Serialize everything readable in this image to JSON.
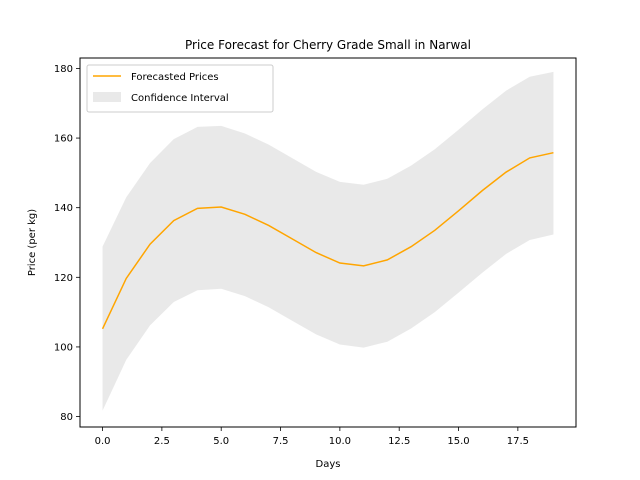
{
  "chart_data": {
    "type": "line",
    "title": "Price Forecast for Cherry Grade Small in Narwal",
    "xlabel": "Days",
    "ylabel": "Price (per kg)",
    "xlim": [
      -0.95,
      19.95
    ],
    "ylim": [
      77.0,
      183.0
    ],
    "x_ticks": [
      0.0,
      2.5,
      5.0,
      7.5,
      10.0,
      12.5,
      15.0,
      17.5
    ],
    "x_tick_labels": [
      "0.0",
      "2.5",
      "5.0",
      "7.5",
      "10.0",
      "12.5",
      "15.0",
      "17.5"
    ],
    "y_ticks": [
      80,
      100,
      120,
      140,
      160,
      180
    ],
    "y_tick_labels": [
      "80",
      "100",
      "120",
      "140",
      "160",
      "180"
    ],
    "grid": false,
    "legend": {
      "position": "top-left",
      "entries": [
        {
          "label": "Forecasted Prices",
          "kind": "line",
          "color": "#ffa500"
        },
        {
          "label": "Confidence Interval",
          "kind": "area",
          "color": "#d3d3d3"
        }
      ]
    },
    "x": [
      0,
      1,
      2,
      3,
      4,
      5,
      6,
      7,
      8,
      9,
      10,
      11,
      12,
      13,
      14,
      15,
      16,
      17,
      18,
      19
    ],
    "series": [
      {
        "name": "Forecasted Prices",
        "color": "#ffa500",
        "values": [
          105.2,
          119.7,
          129.5,
          136.3,
          139.8,
          140.2,
          138.1,
          134.9,
          131.0,
          127.1,
          124.1,
          123.3,
          125.0,
          128.8,
          133.5,
          139.1,
          144.9,
          150.2,
          154.3,
          155.8
        ]
      }
    ],
    "confidence_interval": {
      "name": "Confidence Interval",
      "color": "#d3d3d3",
      "upper": [
        128.8,
        143.0,
        152.8,
        159.7,
        163.2,
        163.5,
        161.3,
        158.1,
        154.2,
        150.3,
        147.4,
        146.6,
        148.3,
        152.1,
        156.8,
        162.4,
        168.2,
        173.6,
        177.6,
        179.0
      ],
      "lower": [
        81.7,
        96.3,
        106.2,
        112.9,
        116.3,
        116.7,
        114.6,
        111.4,
        107.5,
        103.6,
        100.7,
        99.8,
        101.5,
        105.3,
        110.0,
        115.6,
        121.3,
        126.7,
        130.7,
        132.3
      ]
    }
  }
}
